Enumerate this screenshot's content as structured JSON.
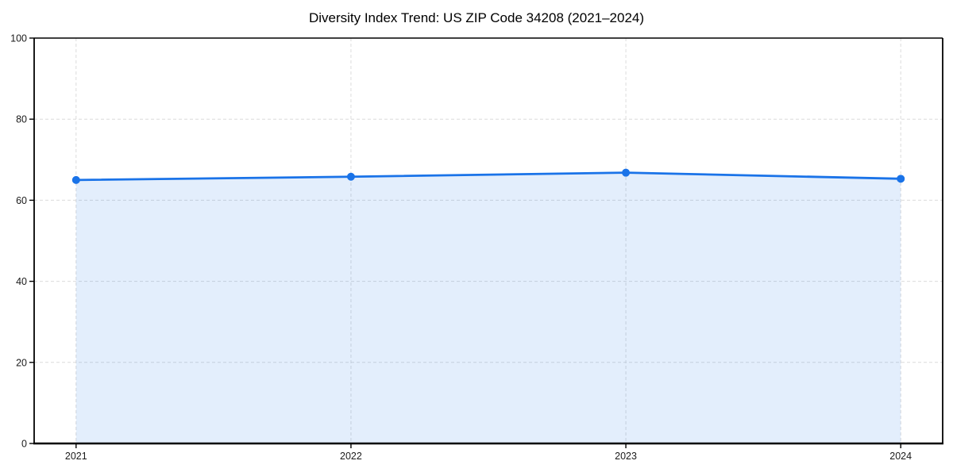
{
  "chart_data": {
    "type": "area",
    "title": "Diversity Index Trend: US ZIP Code 34208 (2021–2024)",
    "categories": [
      "2021",
      "2022",
      "2023",
      "2024"
    ],
    "x": [
      2021,
      2022,
      2023,
      2024
    ],
    "series": [
      {
        "name": "Diversity Index",
        "values": [
          65.0,
          65.8,
          66.8,
          65.3
        ]
      }
    ],
    "xlabel": "",
    "ylabel": "",
    "ylim": [
      0,
      100
    ],
    "yticks": [
      0,
      20,
      40,
      60,
      80,
      100
    ],
    "grid": true,
    "grid_style": "dashed",
    "legend_position": "none",
    "colors": {
      "line": "#1a73e8",
      "marker": "#1a73e8",
      "area_fill": "rgba(26,115,232,0.12)",
      "gridline": "#d8d8d8",
      "axis": "#000000",
      "tick_label": "#1a1a1a",
      "title": "#000000",
      "background": "#ffffff"
    }
  }
}
